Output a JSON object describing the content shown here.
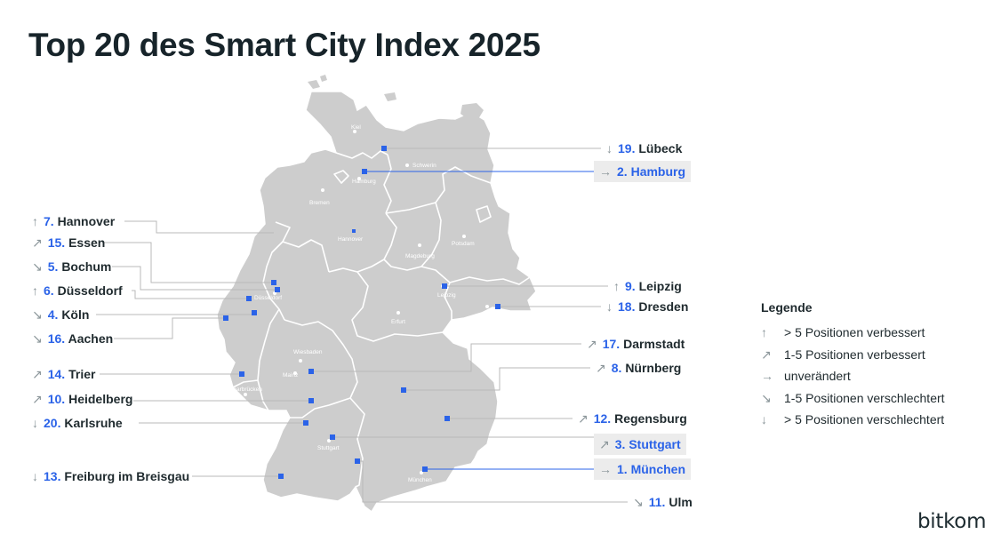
{
  "title": "Top 20 des Smart City Index 2025",
  "legend": {
    "title": "Legende",
    "items": [
      {
        "arrow": "↑",
        "label": "> 5 Positionen verbessert"
      },
      {
        "arrow": "↗",
        "label": "1-5 Positionen verbessert"
      },
      {
        "arrow": "→",
        "label": "unverändert"
      },
      {
        "arrow": "↘",
        "label": "1-5 Positionen verschlechtert"
      },
      {
        "arrow": "↓",
        "label": "> 5 Positionen verschlechtert"
      }
    ]
  },
  "cities": [
    {
      "rank": "19.",
      "name": "Lübeck",
      "arrow": "↓",
      "highlight": false
    },
    {
      "rank": "2.",
      "name": "Hamburg",
      "arrow": "→",
      "highlight": true
    },
    {
      "rank": "7.",
      "name": "Hannover",
      "arrow": "↑",
      "highlight": false
    },
    {
      "rank": "15.",
      "name": "Essen",
      "arrow": "↗",
      "highlight": false
    },
    {
      "rank": "5.",
      "name": "Bochum",
      "arrow": "↘",
      "highlight": false
    },
    {
      "rank": "6.",
      "name": "Düsseldorf",
      "arrow": "↑",
      "highlight": false
    },
    {
      "rank": "4.",
      "name": "Köln",
      "arrow": "↘",
      "highlight": false
    },
    {
      "rank": "16.",
      "name": "Aachen",
      "arrow": "↘",
      "highlight": false
    },
    {
      "rank": "9.",
      "name": "Leipzig",
      "arrow": "↑",
      "highlight": false
    },
    {
      "rank": "18.",
      "name": "Dresden",
      "arrow": "↓",
      "highlight": false
    },
    {
      "rank": "17.",
      "name": "Darmstadt",
      "arrow": "↗",
      "highlight": false
    },
    {
      "rank": "8.",
      "name": "Nürnberg",
      "arrow": "↗",
      "highlight": false
    },
    {
      "rank": "14.",
      "name": "Trier",
      "arrow": "↗",
      "highlight": false
    },
    {
      "rank": "10.",
      "name": "Heidelberg",
      "arrow": "↗",
      "highlight": false
    },
    {
      "rank": "20.",
      "name": "Karlsruhe",
      "arrow": "↓",
      "highlight": false
    },
    {
      "rank": "12.",
      "name": "Regensburg",
      "arrow": "↗",
      "highlight": false
    },
    {
      "rank": "3.",
      "name": "Stuttgart",
      "arrow": "↗",
      "highlight": true
    },
    {
      "rank": "13.",
      "name": "Freiburg im Breisgau",
      "arrow": "↓",
      "highlight": false
    },
    {
      "rank": "1.",
      "name": "München",
      "arrow": "→",
      "highlight": true
    },
    {
      "rank": "11.",
      "name": "Ulm",
      "arrow": "↘",
      "highlight": false
    }
  ],
  "map_labels": [
    "Kiel",
    "Schwerin",
    "Hamburg",
    "Bremen",
    "Hannover",
    "Potsdam",
    "Magdeburg",
    "Düsseldorf",
    "Leipzig",
    "Dresden",
    "Erfurt",
    "Wiesbaden",
    "Mainz",
    "Saarbrücken",
    "Stuttgart",
    "München"
  ],
  "colors": {
    "land": "#cdcdcd",
    "border": "#ffffff",
    "marker": "#2b63e8",
    "leader": "#b9b9b9",
    "leader_highlight": "#2b63e8"
  },
  "logo": "bitkom"
}
